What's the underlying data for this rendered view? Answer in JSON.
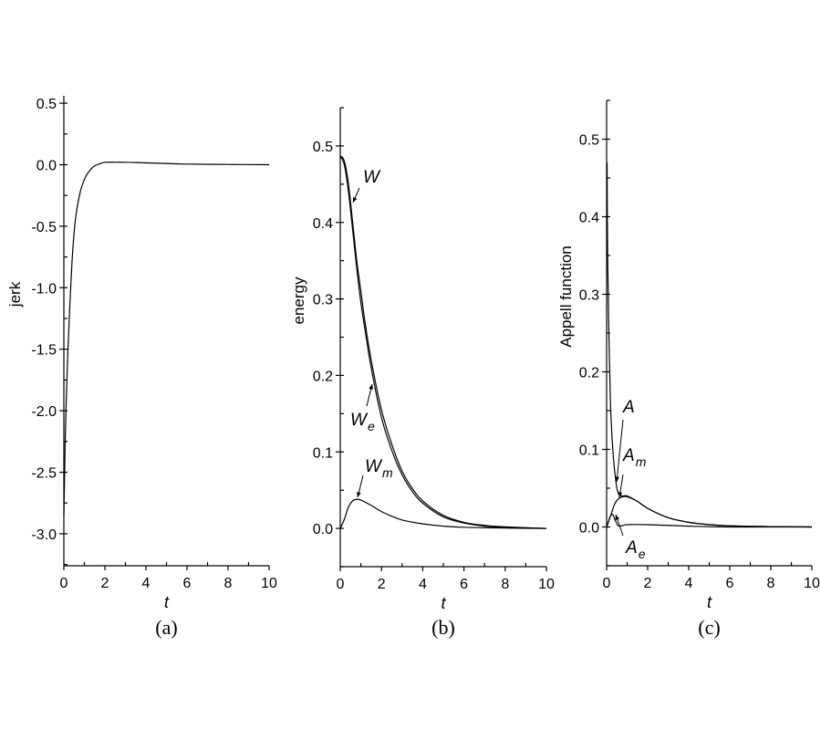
{
  "chart_data": [
    {
      "id": "a",
      "type": "line",
      "caption": "(a)",
      "title": "",
      "xlabel": "t",
      "ylabel": "jerk",
      "xlim": [
        0,
        10
      ],
      "ylim": [
        -3.26,
        0.56
      ],
      "xticks": [
        "0",
        "2",
        "4",
        "6",
        "8",
        "10"
      ],
      "yticks": [
        "0.5",
        "0.0",
        "-0.5",
        "-1.0",
        "-1.5",
        "-2.0",
        "-2.5",
        "-3.0"
      ],
      "grid": false,
      "series": [
        {
          "name": "jerk",
          "x": [
            0,
            0.05,
            0.1,
            0.2,
            0.3,
            0.4,
            0.5,
            0.6,
            0.8,
            1.0,
            1.2,
            1.5,
            1.8,
            2.0,
            2.5,
            3,
            4,
            5,
            6,
            8,
            10
          ],
          "y": [
            -2.85,
            -2.4,
            -2.0,
            -1.5,
            -1.1,
            -0.78,
            -0.55,
            -0.4,
            -0.22,
            -0.12,
            -0.06,
            -0.01,
            0.01,
            0.02,
            0.02,
            0.02,
            0.015,
            0.01,
            0.005,
            0.002,
            0.0
          ]
        }
      ]
    },
    {
      "id": "b",
      "type": "line",
      "caption": "(b)",
      "title": "",
      "xlabel": "t",
      "ylabel": "energy",
      "xlim": [
        0,
        10
      ],
      "ylim": [
        -0.05,
        0.55
      ],
      "xticks": [
        "0",
        "2",
        "4",
        "6",
        "8",
        "10"
      ],
      "yticks": [
        "0.5",
        "0.4",
        "0.3",
        "0.2",
        "0.1",
        "0.0"
      ],
      "grid": false,
      "annotations": [
        "W",
        "W_e",
        "W_m"
      ],
      "series": [
        {
          "name": "W",
          "x": [
            0,
            0.2,
            0.4,
            0.6,
            0.8,
            1.0,
            1.2,
            1.5,
            2.0,
            2.5,
            3.0,
            3.5,
            4.0,
            5.0,
            6.0,
            7.0,
            8.0,
            10.0
          ],
          "y": [
            0.487,
            0.48,
            0.45,
            0.4,
            0.35,
            0.31,
            0.27,
            0.22,
            0.155,
            0.11,
            0.075,
            0.052,
            0.036,
            0.017,
            0.008,
            0.004,
            0.002,
            0.0
          ]
        },
        {
          "name": "W_e",
          "x": [
            0,
            0.2,
            0.4,
            0.6,
            0.8,
            1.0,
            1.2,
            1.5,
            2.0,
            2.5,
            3.0,
            3.5,
            4.0,
            5.0,
            6.0,
            7.0,
            8.0,
            10.0
          ],
          "y": [
            0.487,
            0.475,
            0.44,
            0.39,
            0.34,
            0.295,
            0.26,
            0.21,
            0.145,
            0.102,
            0.07,
            0.048,
            0.033,
            0.015,
            0.007,
            0.003,
            0.0015,
            0.0
          ]
        },
        {
          "name": "W_m",
          "x": [
            0,
            0.2,
            0.4,
            0.6,
            0.8,
            1.0,
            1.5,
            2.0,
            2.5,
            3.0,
            4.0,
            5.0,
            6.0,
            8.0,
            10.0
          ],
          "y": [
            0.0,
            0.012,
            0.028,
            0.036,
            0.038,
            0.037,
            0.03,
            0.022,
            0.016,
            0.011,
            0.006,
            0.003,
            0.0015,
            0.0005,
            0.0
          ]
        }
      ]
    },
    {
      "id": "c",
      "type": "line",
      "caption": "(c)",
      "title": "",
      "xlabel": "t",
      "ylabel": "Appell function",
      "xlim": [
        0,
        10
      ],
      "ylim": [
        -0.05,
        0.55
      ],
      "xticks": [
        "0",
        "2",
        "4",
        "6",
        "8",
        "10"
      ],
      "yticks": [
        "0.5",
        "0.4",
        "0.3",
        "0.2",
        "0.1",
        "0.0"
      ],
      "grid": false,
      "annotations": [
        "A",
        "A_m",
        "A_e"
      ],
      "series": [
        {
          "name": "A",
          "x": [
            0.02,
            0.05,
            0.1,
            0.15,
            0.2,
            0.3,
            0.4,
            0.5,
            0.6,
            0.8,
            1.0,
            1.5,
            2.0,
            3.0,
            4.0,
            5.0,
            6.0,
            8.0,
            10.0
          ],
          "y": [
            0.47,
            0.35,
            0.26,
            0.2,
            0.15,
            0.1,
            0.07,
            0.05,
            0.042,
            0.04,
            0.04,
            0.033,
            0.024,
            0.012,
            0.006,
            0.003,
            0.0015,
            0.0005,
            0.0
          ]
        },
        {
          "name": "A_m",
          "x": [
            0,
            0.2,
            0.4,
            0.6,
            0.8,
            1.0,
            1.5,
            2.0,
            3.0,
            4.0,
            5.0,
            6.0,
            8.0,
            10.0
          ],
          "y": [
            0.0,
            0.015,
            0.03,
            0.037,
            0.039,
            0.039,
            0.033,
            0.024,
            0.012,
            0.006,
            0.003,
            0.0015,
            0.0005,
            0.0
          ]
        },
        {
          "name": "A_e",
          "x": [
            0,
            0.1,
            0.2,
            0.3,
            0.4,
            0.5,
            0.6,
            0.8,
            1.0,
            2.0,
            4.0,
            6.0,
            10.0
          ],
          "y": [
            0.0,
            0.008,
            0.015,
            0.016,
            0.01,
            0.004,
            0.001,
            0.002,
            0.003,
            0.003,
            0.001,
            0.0,
            0.0
          ]
        }
      ]
    }
  ]
}
